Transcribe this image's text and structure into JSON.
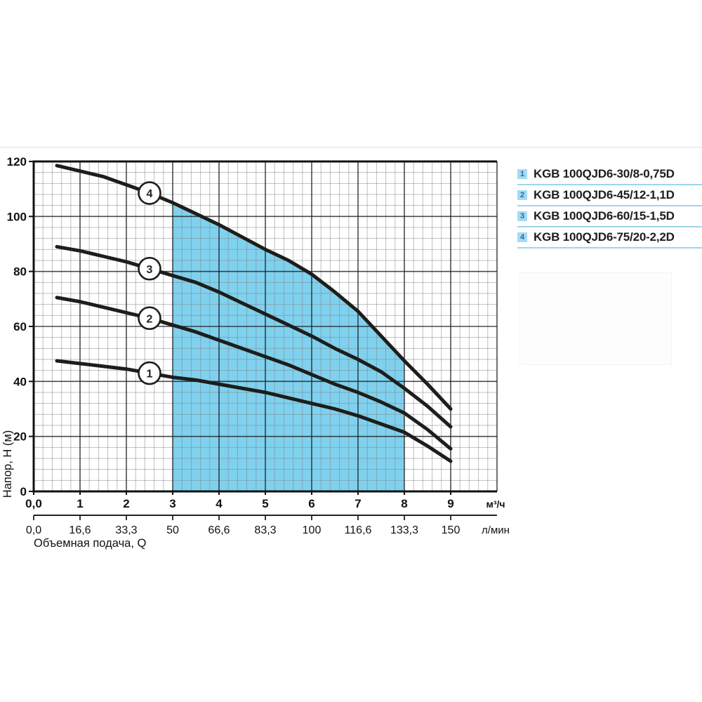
{
  "chart_data": {
    "type": "line",
    "title": "",
    "x_axis": {
      "axis_title": "Объемная подача, Q",
      "primary_unit": "м³/ч",
      "secondary_unit": "л/мин",
      "tick_labels_primary": [
        "0,0",
        "1",
        "2",
        "3",
        "4",
        "5",
        "6",
        "7",
        "8",
        "9"
      ],
      "tick_labels_secondary": [
        "0,0",
        "16,6",
        "33,3",
        "50",
        "66,6",
        "83,3",
        "100",
        "116,6",
        "133,3",
        "150"
      ],
      "range": [
        0,
        10
      ],
      "minor_step": 0.2
    },
    "y_axis": {
      "axis_title": "Напор, H (м)",
      "tick_labels": [
        "0",
        "20",
        "40",
        "60",
        "80",
        "100",
        "120"
      ],
      "tick_step": 20,
      "range": [
        0,
        120
      ],
      "minor_step": 4
    },
    "x_start": 0.5,
    "x_step": 0.5,
    "marker_at_x": 2.5,
    "series": [
      {
        "marker": "1",
        "name": "KGB 100QJD6-30/8-0,75D",
        "values": [
          47.5,
          46.5,
          45.5,
          44.5,
          43,
          41.5,
          40.5,
          39,
          37.5,
          36,
          34,
          32,
          30,
          27.5,
          24.5,
          21.5,
          16.5,
          11
        ]
      },
      {
        "marker": "2",
        "name": "KGB 100QJD6-45/12-1,1D",
        "values": [
          70.5,
          69,
          67,
          65,
          63,
          60.5,
          58,
          55,
          52,
          49,
          46,
          42.5,
          39,
          36,
          32.5,
          28.5,
          22.5,
          15.5
        ]
      },
      {
        "marker": "3",
        "name": "KGB 100QJD6-60/15-1,5D",
        "values": [
          89,
          87.5,
          85.5,
          83.5,
          81,
          78.5,
          76,
          72.5,
          68.5,
          64.5,
          60.5,
          56.5,
          52,
          48,
          43.5,
          37.5,
          31,
          23.5
        ]
      },
      {
        "marker": "4",
        "name": "KGB 100QJD6-75/20-2,2D",
        "values": [
          118.5,
          116.5,
          114.5,
          111.5,
          108.5,
          105,
          101,
          97,
          92.5,
          88,
          84,
          79,
          72.5,
          65.5,
          56.5,
          47.5,
          39,
          30
        ]
      }
    ],
    "operating_range": {
      "x_from": 3,
      "x_to": 8,
      "bounded_by_series": "4"
    },
    "legend": {
      "items": [
        {
          "num": "1",
          "label": "KGB 100QJD6-30/8-0,75D"
        },
        {
          "num": "2",
          "label": "KGB 100QJD6-45/12-1,1D"
        },
        {
          "num": "3",
          "label": "KGB 100QJD6-60/15-1,5D"
        },
        {
          "num": "4",
          "label": "KGB 100QJD6-75/20-2,2D"
        }
      ]
    },
    "colors": {
      "operating_fill": "#7fd1ee",
      "curve": "#1d1d1b",
      "grid_minor": "#808080",
      "grid_major": "#1a1a1a",
      "axis": "#111111",
      "legend_square": "#a6daf3",
      "legend_number": "#1c6bad",
      "legend_rule": "#9fd4ee"
    }
  }
}
